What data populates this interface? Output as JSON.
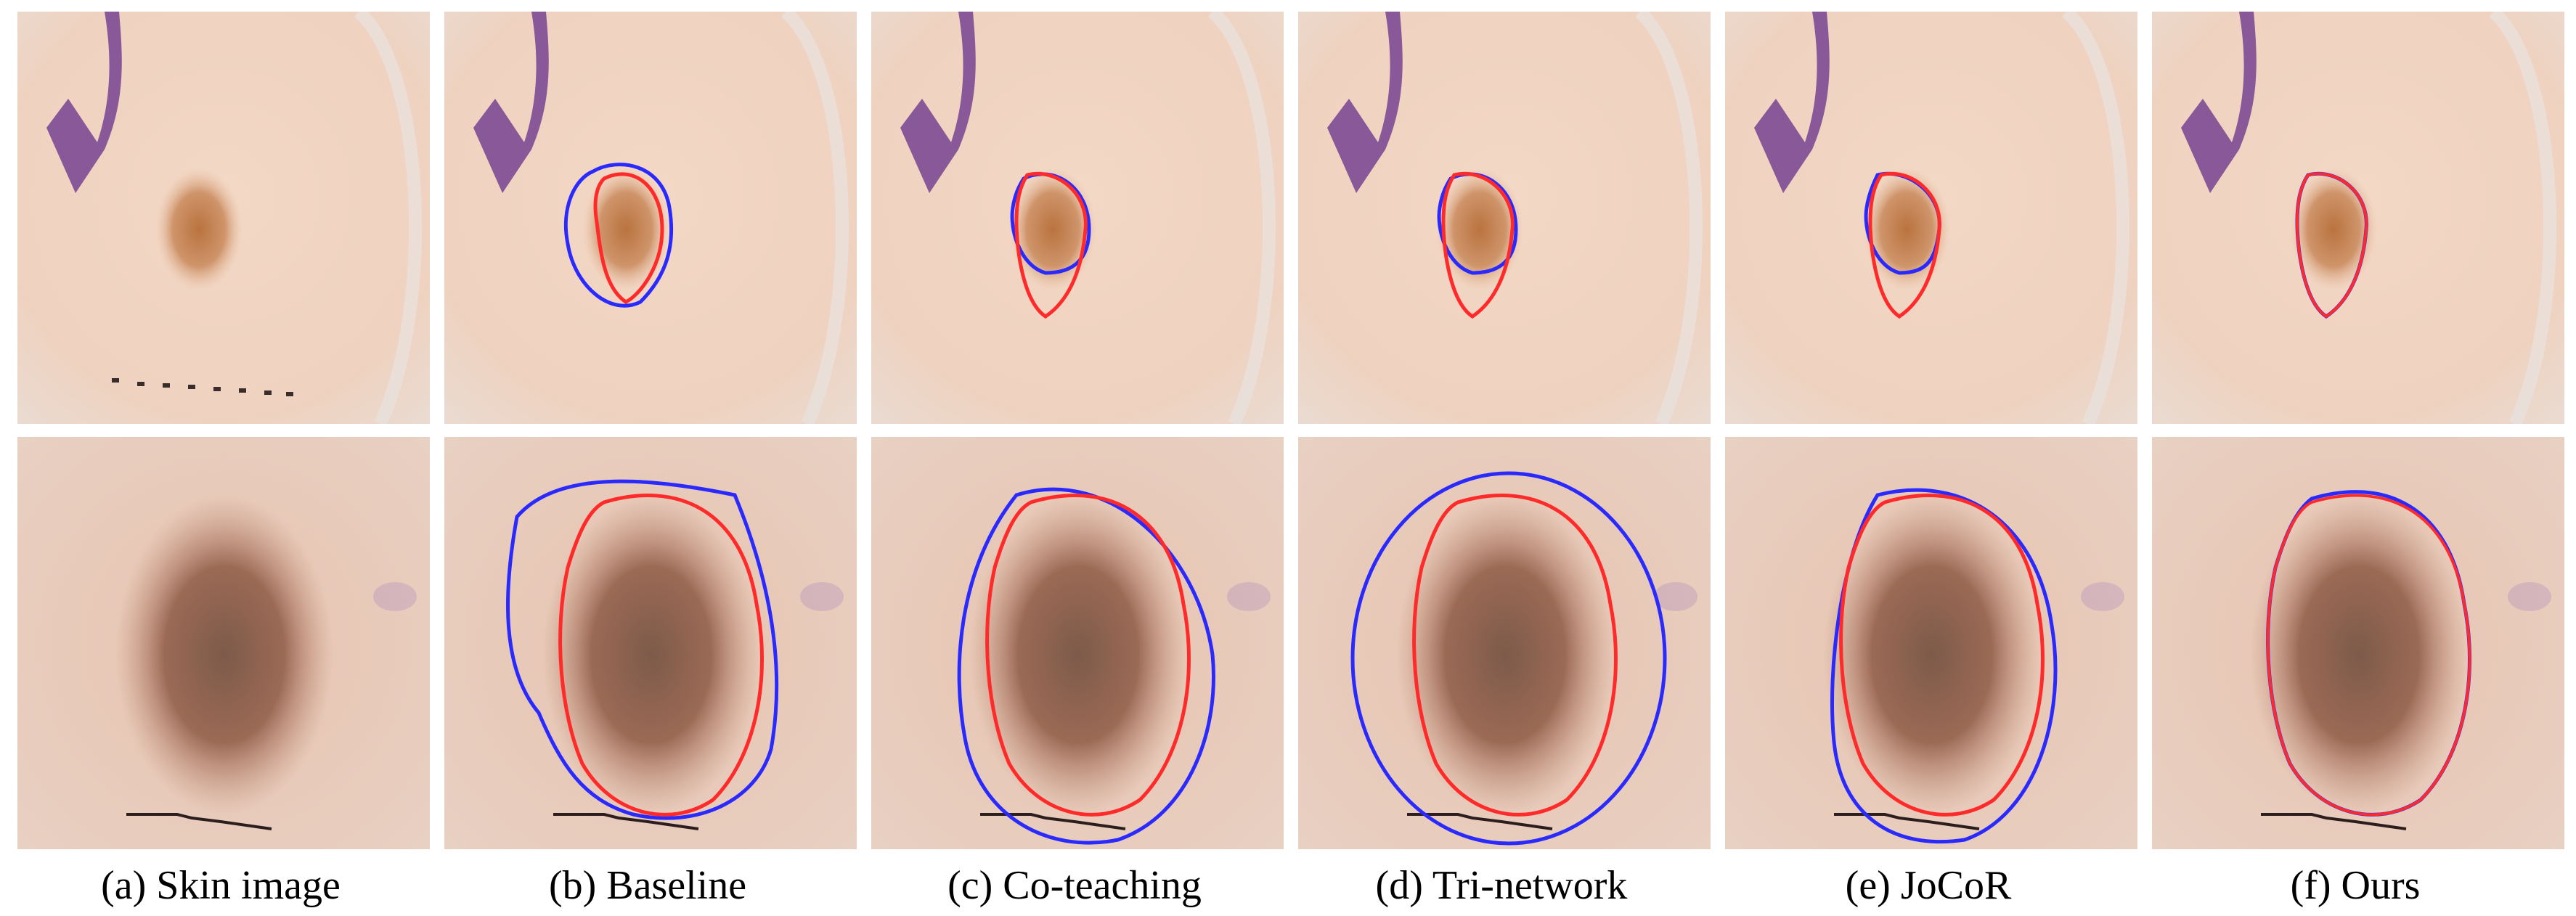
{
  "figure": {
    "columns": [
      {
        "caption": "(a) Skin image"
      },
      {
        "caption": "(b) Baseline"
      },
      {
        "caption": "(c) Co-teaching"
      },
      {
        "caption": "(d) Tri-network"
      },
      {
        "caption": "(e) JoCoR"
      },
      {
        "caption": "(f) Ours"
      }
    ],
    "contour_colors": {
      "ground_truth": "#ff2a2a",
      "prediction": "#2a2aff"
    },
    "rows": [
      {
        "name": "row-1-skin-lesion-small"
      },
      {
        "name": "row-2-skin-lesion-large"
      }
    ]
  }
}
